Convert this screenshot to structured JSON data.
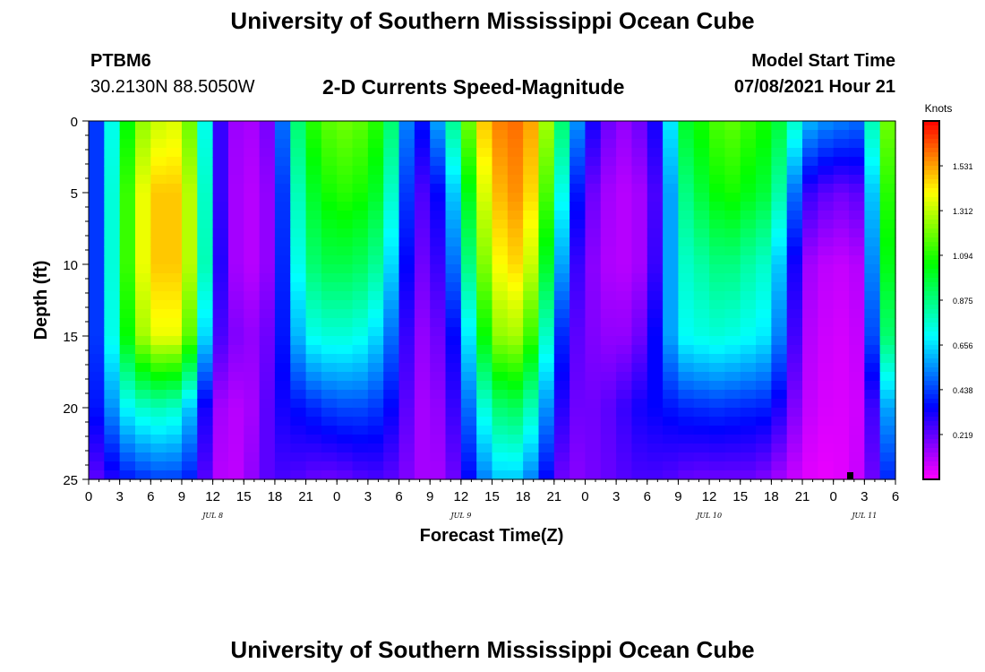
{
  "header": {
    "title": "University of Southern Mississippi Ocean Cube",
    "station_id": "PTBM6",
    "coordinates": "30.2130N  88.5050W",
    "product": "2-D Currents Speed-Magnitude",
    "model_start_label": "Model Start Time",
    "model_start_value": "07/08/2021 Hour 21"
  },
  "footer": {
    "title": "University of Southern Mississippi Ocean Cube"
  },
  "colors": {
    "scale_low": "#ff00ff",
    "scale_high": "#ff0000"
  },
  "chart_data": {
    "type": "heatmap",
    "xlabel": "Forecast Time(Z)",
    "ylabel": "Depth (ft)",
    "x_tick_labels": [
      "0",
      "3",
      "6",
      "9",
      "12",
      "15",
      "18",
      "21",
      "0",
      "3",
      "6",
      "9",
      "12",
      "15",
      "18",
      "21",
      "0",
      "3",
      "6",
      "9",
      "12",
      "15",
      "18",
      "21",
      "0",
      "3",
      "6"
    ],
    "x_range_hours": [
      0,
      78
    ],
    "y_ticks": [
      0,
      5,
      10,
      15,
      20,
      25
    ],
    "y_range": [
      0,
      25
    ],
    "date_labels": [
      {
        "label": "JUL 8",
        "hour": 12
      },
      {
        "label": "JUL 9",
        "hour": 36
      },
      {
        "label": "JUL 10",
        "hour": 60
      },
      {
        "label": "JUL 11",
        "hour": 75
      }
    ],
    "colorbar": {
      "title": "Knots",
      "ticks": [
        0.219,
        0.438,
        0.656,
        0.875,
        1.094,
        1.312,
        1.531
      ],
      "range": [
        0,
        1.75
      ]
    },
    "speed_knots": {
      "depths_ft": [
        0,
        5,
        10,
        15,
        20,
        25
      ],
      "hours": [
        0,
        1.5,
        3,
        4.5,
        6,
        7.5,
        9,
        10.5,
        12,
        13.5,
        15,
        16.5,
        18,
        19.5,
        21,
        22.5,
        24,
        25.5,
        27,
        28.5,
        30,
        31.5,
        33,
        34.5,
        36,
        37.5,
        39,
        40.5,
        42,
        43.5,
        45,
        46.5,
        48,
        49.5,
        51,
        52.5,
        54,
        55.5,
        57,
        58.5,
        60,
        61.5,
        63,
        64.5,
        66,
        67.5,
        69,
        70.5,
        72,
        73.5,
        75,
        76.5,
        78
      ],
      "values": [
        [
          0.3,
          0.55,
          0.9,
          1.2,
          1.3,
          1.35,
          1.35,
          1.05,
          0.4,
          0.15,
          0.12,
          0.12,
          0.25,
          0.75,
          1.05,
          1.15,
          1.2,
          1.2,
          1.15,
          1.05,
          0.75,
          0.3,
          0.45,
          0.7,
          1.0,
          1.4,
          1.55,
          1.6,
          1.6,
          1.45,
          1.1,
          0.7,
          0.4,
          0.25,
          0.15,
          0.15,
          0.25,
          0.4,
          0.95,
          1.05,
          1.1,
          1.2,
          1.15,
          1.1,
          1.05,
          0.9,
          0.65,
          0.55,
          0.55,
          0.5,
          0.5,
          1.1,
          1.3
        ],
        [
          0.3,
          0.55,
          0.95,
          1.3,
          1.45,
          1.5,
          1.45,
          1.15,
          0.4,
          0.15,
          0.1,
          0.1,
          0.2,
          0.65,
          0.95,
          1.05,
          1.1,
          1.1,
          1.05,
          0.95,
          0.6,
          0.25,
          0.25,
          0.45,
          0.8,
          1.25,
          1.45,
          1.55,
          1.55,
          1.35,
          0.95,
          0.5,
          0.25,
          0.15,
          0.1,
          0.1,
          0.15,
          0.35,
          0.8,
          0.95,
          1.0,
          1.1,
          1.05,
          1.0,
          0.95,
          0.7,
          0.3,
          0.25,
          0.2,
          0.2,
          0.25,
          1.0,
          1.2
        ],
        [
          0.3,
          0.55,
          0.95,
          1.3,
          1.45,
          1.5,
          1.45,
          1.15,
          0.45,
          0.15,
          0.1,
          0.1,
          0.2,
          0.6,
          0.85,
          0.95,
          0.95,
          0.95,
          0.9,
          0.8,
          0.5,
          0.2,
          0.2,
          0.35,
          0.65,
          1.1,
          1.35,
          1.45,
          1.45,
          1.2,
          0.8,
          0.35,
          0.2,
          0.12,
          0.1,
          0.1,
          0.15,
          0.4,
          0.75,
          0.8,
          0.85,
          0.9,
          0.85,
          0.8,
          0.75,
          0.5,
          0.15,
          0.1,
          0.08,
          0.08,
          0.12,
          0.95,
          1.1
        ],
        [
          0.3,
          0.55,
          0.9,
          1.2,
          1.35,
          1.4,
          1.35,
          1.0,
          0.3,
          0.2,
          0.15,
          0.15,
          0.25,
          0.5,
          0.7,
          0.75,
          0.75,
          0.75,
          0.7,
          0.6,
          0.4,
          0.15,
          0.15,
          0.25,
          0.45,
          0.9,
          1.2,
          1.3,
          1.25,
          1.0,
          0.55,
          0.25,
          0.2,
          0.15,
          0.15,
          0.15,
          0.25,
          0.45,
          0.7,
          0.72,
          0.75,
          0.75,
          0.72,
          0.7,
          0.65,
          0.4,
          0.12,
          0.08,
          0.06,
          0.06,
          0.1,
          0.8,
          1.0
        ],
        [
          0.3,
          0.45,
          0.65,
          0.75,
          0.8,
          0.8,
          0.75,
          0.5,
          0.15,
          0.1,
          0.1,
          0.15,
          0.3,
          0.35,
          0.38,
          0.42,
          0.45,
          0.45,
          0.45,
          0.4,
          0.3,
          0.15,
          0.1,
          0.2,
          0.35,
          0.65,
          0.85,
          0.95,
          0.9,
          0.7,
          0.4,
          0.2,
          0.2,
          0.2,
          0.25,
          0.3,
          0.35,
          0.35,
          0.4,
          0.4,
          0.42,
          0.42,
          0.4,
          0.4,
          0.38,
          0.25,
          0.1,
          0.06,
          0.05,
          0.05,
          0.08,
          0.45,
          0.7
        ],
        [
          0.2,
          0.25,
          0.35,
          0.4,
          0.42,
          0.45,
          0.42,
          0.35,
          0.12,
          0.08,
          0.1,
          0.2,
          0.25,
          0.25,
          0.22,
          0.2,
          0.2,
          0.22,
          0.25,
          0.25,
          0.2,
          0.15,
          0.1,
          0.15,
          0.25,
          0.45,
          0.6,
          0.65,
          0.6,
          0.45,
          0.25,
          0.15,
          0.18,
          0.2,
          0.22,
          0.25,
          0.25,
          0.25,
          0.22,
          0.2,
          0.2,
          0.2,
          0.2,
          0.2,
          0.15,
          0.1,
          0.05,
          0.03,
          0.03,
          0.05,
          0.1,
          0.3,
          0.5
        ]
      ]
    }
  }
}
